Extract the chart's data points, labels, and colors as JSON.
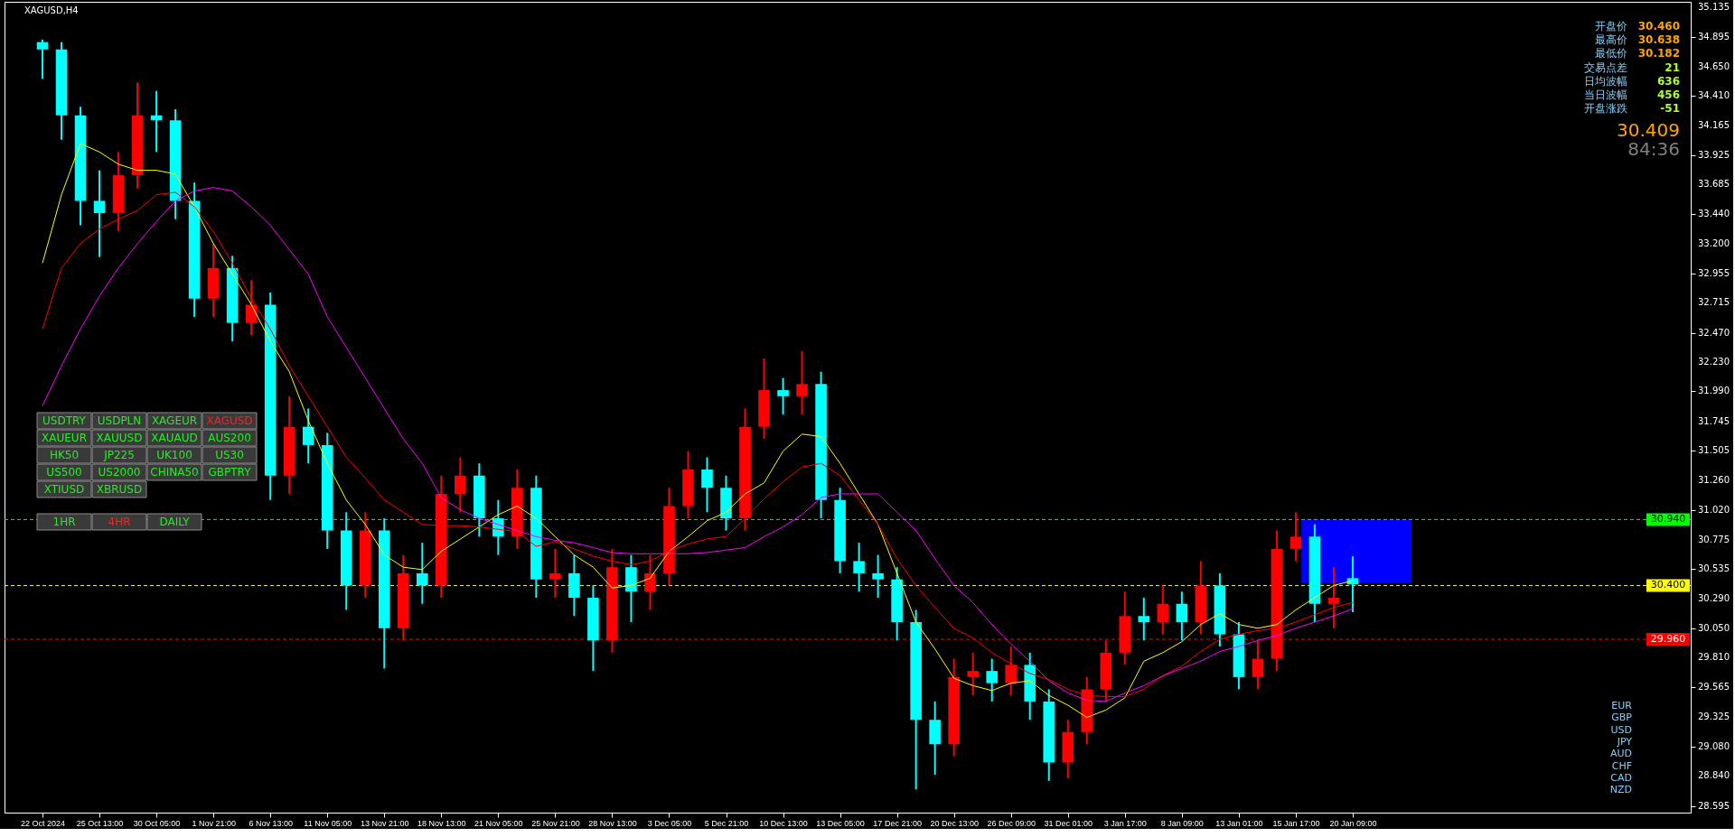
{
  "chart_data": {
    "type": "candlestick",
    "title": "XAGUSD,H4",
    "categories": [
      "22 Oct 2024",
      null,
      null,
      "25 Oct 13:00",
      null,
      null,
      "30 Oct 05:00",
      null,
      null,
      "1 Nov 21:00",
      null,
      null,
      "6 Nov 13:00",
      null,
      null,
      "11 Nov 05:00",
      null,
      null,
      "13 Nov 21:00",
      null,
      null,
      "18 Nov 13:00",
      null,
      null,
      "21 Nov 05:00",
      null,
      null,
      "25 Nov 21:00",
      null,
      null,
      "28 Nov 13:00",
      null,
      null,
      "3 Dec 05:00",
      null,
      null,
      "5 Dec 21:00",
      null,
      null,
      "10 Dec 13:00",
      null,
      null,
      "13 Dec 05:00",
      null,
      null,
      "17 Dec 21:00",
      null,
      null,
      "20 Dec 13:00",
      null,
      null,
      "26 Dec 09:00",
      null,
      null,
      "31 Dec 01:00",
      null,
      null,
      "3 Jan 17:00",
      null,
      null,
      "8 Jan 09:00",
      null,
      null,
      "13 Jan 01:00",
      null,
      null,
      "15 Jan 17:00",
      null,
      null,
      "20 Jan 09:00"
    ],
    "ohlc": [
      [
        34.85,
        34.87,
        34.55,
        34.79
      ],
      [
        34.79,
        34.85,
        34.05,
        34.25
      ],
      [
        34.25,
        34.32,
        33.35,
        33.55
      ],
      [
        33.55,
        33.8,
        33.09,
        33.45
      ],
      [
        33.45,
        33.95,
        33.3,
        33.76
      ],
      [
        33.76,
        34.52,
        33.65,
        34.25
      ],
      [
        34.25,
        34.45,
        33.95,
        34.21
      ],
      [
        34.21,
        34.3,
        33.4,
        33.55
      ],
      [
        33.55,
        33.7,
        32.6,
        32.75
      ],
      [
        32.75,
        33.2,
        32.6,
        33.0
      ],
      [
        33.0,
        33.1,
        32.4,
        32.55
      ],
      [
        32.55,
        32.9,
        32.45,
        32.7
      ],
      [
        32.7,
        32.8,
        31.1,
        31.3
      ],
      [
        31.3,
        31.95,
        31.15,
        31.7
      ],
      [
        31.7,
        31.85,
        31.4,
        31.55
      ],
      [
        31.55,
        31.65,
        30.7,
        30.85
      ],
      [
        30.85,
        31.0,
        30.2,
        30.4
      ],
      [
        30.4,
        31.0,
        30.3,
        30.85
      ],
      [
        30.85,
        30.95,
        29.72,
        30.05
      ],
      [
        30.05,
        30.65,
        29.95,
        30.5
      ],
      [
        30.5,
        30.75,
        30.25,
        30.4
      ],
      [
        30.4,
        31.3,
        30.3,
        31.15
      ],
      [
        31.15,
        31.45,
        31.0,
        31.3
      ],
      [
        31.3,
        31.4,
        30.8,
        30.95
      ],
      [
        30.95,
        31.1,
        30.65,
        30.8
      ],
      [
        30.8,
        31.35,
        30.7,
        31.2
      ],
      [
        31.2,
        31.3,
        30.3,
        30.45
      ],
      [
        30.45,
        30.7,
        30.3,
        30.5
      ],
      [
        30.5,
        30.65,
        30.15,
        30.3
      ],
      [
        30.3,
        30.4,
        29.7,
        29.95
      ],
      [
        29.95,
        30.7,
        29.85,
        30.55
      ],
      [
        30.55,
        30.65,
        30.1,
        30.35
      ],
      [
        30.35,
        30.65,
        30.2,
        30.5
      ],
      [
        30.5,
        31.2,
        30.4,
        31.05
      ],
      [
        31.05,
        31.5,
        30.95,
        31.35
      ],
      [
        31.35,
        31.45,
        31.0,
        31.2
      ],
      [
        31.2,
        31.3,
        30.85,
        30.95
      ],
      [
        30.95,
        31.85,
        30.85,
        31.7
      ],
      [
        31.7,
        32.26,
        31.6,
        32.0
      ],
      [
        32.0,
        32.1,
        31.8,
        31.95
      ],
      [
        31.95,
        32.32,
        31.8,
        32.05
      ],
      [
        32.05,
        32.15,
        30.95,
        31.1
      ],
      [
        31.1,
        31.2,
        30.5,
        30.6
      ],
      [
        30.6,
        30.75,
        30.35,
        30.5
      ],
      [
        30.5,
        30.65,
        30.3,
        30.45
      ],
      [
        30.45,
        30.55,
        29.95,
        30.1
      ],
      [
        30.1,
        30.2,
        28.73,
        29.3
      ],
      [
        29.3,
        29.45,
        28.85,
        29.1
      ],
      [
        29.1,
        29.8,
        29.0,
        29.65
      ],
      [
        29.65,
        29.85,
        29.5,
        29.7
      ],
      [
        29.7,
        29.8,
        29.45,
        29.6
      ],
      [
        29.6,
        29.9,
        29.5,
        29.75
      ],
      [
        29.75,
        29.85,
        29.3,
        29.45
      ],
      [
        29.45,
        29.55,
        28.8,
        28.95
      ],
      [
        28.95,
        29.3,
        28.82,
        29.2
      ],
      [
        29.2,
        29.65,
        29.1,
        29.55
      ],
      [
        29.55,
        29.95,
        29.45,
        29.85
      ],
      [
        29.85,
        30.35,
        29.75,
        30.15
      ],
      [
        30.15,
        30.3,
        29.95,
        30.1
      ],
      [
        30.1,
        30.4,
        30.0,
        30.25
      ],
      [
        30.25,
        30.35,
        29.95,
        30.1
      ],
      [
        30.1,
        30.6,
        30.0,
        30.4
      ],
      [
        30.4,
        30.5,
        29.9,
        30.0
      ],
      [
        30.0,
        30.1,
        29.55,
        29.65
      ],
      [
        29.65,
        29.95,
        29.55,
        29.8
      ],
      [
        29.8,
        30.85,
        29.7,
        30.7
      ],
      [
        30.7,
        31.0,
        30.6,
        30.8
      ],
      [
        30.8,
        30.9,
        30.1,
        30.25
      ],
      [
        30.25,
        30.55,
        30.05,
        30.3
      ],
      [
        30.46,
        30.638,
        30.182,
        30.409
      ]
    ],
    "colors": [
      "#00ffff",
      "#00ffff",
      "#00ffff",
      "#00ffff",
      "#ff0000",
      "#ff0000",
      "#00ffff",
      "#00ffff",
      "#00ffff",
      "#ff0000",
      "#00ffff",
      "#ff0000",
      "#00ffff",
      "#ff0000",
      "#00ffff",
      "#00ffff",
      "#00ffff",
      "#ff0000",
      "#00ffff",
      "#ff0000",
      "#00ffff",
      "#ff0000",
      "#ff0000",
      "#00ffff",
      "#00ffff",
      "#ff0000",
      "#00ffff",
      "#ff0000",
      "#00ffff",
      "#00ffff",
      "#ff0000",
      "#00ffff",
      "#ff0000",
      "#ff0000",
      "#ff0000",
      "#00ffff",
      "#00ffff",
      "#ff0000",
      "#ff0000",
      "#00ffff",
      "#ff0000",
      "#00ffff",
      "#00ffff",
      "#00ffff",
      "#00ffff",
      "#00ffff",
      "#00ffff",
      "#00ffff",
      "#ff0000",
      "#ff0000",
      "#00ffff",
      "#ff0000",
      "#00ffff",
      "#00ffff",
      "#ff0000",
      "#ff0000",
      "#ff0000",
      "#ff0000",
      "#00ffff",
      "#ff0000",
      "#00ffff",
      "#ff0000",
      "#00ffff",
      "#00ffff",
      "#ff0000",
      "#ff0000",
      "#ff0000",
      "#00ffff",
      "#ff0000",
      "#00ffff"
    ],
    "series": [
      {
        "type": "line",
        "color": "#ffff00",
        "values": [
          33.04,
          33.6,
          34.02,
          33.95,
          33.85,
          33.8,
          33.8,
          33.77,
          33.5,
          33.2,
          32.95,
          32.7,
          32.4,
          32.15,
          31.75,
          31.4,
          31.1,
          30.9,
          30.65,
          30.55,
          30.53,
          30.68,
          30.78,
          30.88,
          30.98,
          31.05,
          30.95,
          30.8,
          30.65,
          30.55,
          30.38,
          30.4,
          30.46,
          30.68,
          30.8,
          30.93,
          31.0,
          31.15,
          31.24,
          31.5,
          31.64,
          31.62,
          31.4,
          31.15,
          30.9,
          30.5,
          30.1,
          29.88,
          29.64,
          29.58,
          29.54,
          29.6,
          29.62,
          29.5,
          29.42,
          29.32,
          29.38,
          29.48,
          29.78,
          29.85,
          29.94,
          30.08,
          30.17,
          30.08,
          30.05,
          30.08,
          30.2,
          30.3,
          30.4,
          30.44
        ]
      },
      {
        "type": "line",
        "color": "#ff0000",
        "values": [
          32.5,
          33.0,
          33.2,
          33.32,
          33.4,
          33.47,
          33.6,
          33.62,
          33.5,
          33.3,
          33.04,
          32.75,
          32.5,
          32.2,
          31.95,
          31.7,
          31.45,
          31.28,
          31.1,
          31.0,
          30.9,
          30.89,
          30.89,
          30.88,
          30.86,
          30.84,
          30.72,
          30.76,
          30.7,
          30.64,
          30.6,
          30.57,
          30.6,
          30.68,
          30.74,
          30.78,
          30.8,
          30.95,
          31.11,
          31.25,
          31.37,
          31.4,
          31.3,
          31.1,
          30.9,
          30.62,
          30.4,
          30.22,
          30.05,
          29.97,
          29.85,
          29.76,
          29.68,
          29.63,
          29.55,
          29.5,
          29.49,
          29.49,
          29.55,
          29.66,
          29.74,
          29.86,
          29.96,
          30.0,
          30.03,
          30.05,
          30.1,
          30.16,
          30.22,
          30.26
        ]
      },
      {
        "type": "line",
        "color": "#ff00ff",
        "values": [
          31.87,
          32.2,
          32.5,
          32.77,
          33.0,
          33.2,
          33.38,
          33.55,
          33.63,
          33.66,
          33.63,
          33.5,
          33.35,
          33.15,
          32.95,
          32.6,
          32.35,
          32.1,
          31.85,
          31.6,
          31.4,
          31.12,
          31.02,
          30.95,
          30.9,
          30.85,
          30.8,
          30.77,
          30.75,
          30.71,
          30.67,
          30.66,
          30.66,
          30.66,
          30.66,
          30.67,
          30.69,
          30.71,
          30.8,
          30.88,
          30.98,
          31.12,
          31.15,
          31.15,
          31.15,
          31.0,
          30.85,
          30.62,
          30.4,
          30.26,
          30.08,
          29.92,
          29.78,
          29.62,
          29.52,
          29.46,
          29.45,
          29.52,
          29.58,
          29.66,
          29.72,
          29.78,
          29.86,
          29.9,
          29.95,
          29.99,
          30.05,
          30.1,
          30.15,
          30.21
        ]
      }
    ],
    "ylim": [
      28.54,
      35.18
    ],
    "yticks": [
      28.595,
      {
        "value": 28.84,
        "label": "28.840"
      },
      {
        "value": 29.08,
        "label": "29.080"
      },
      29.325,
      29.565,
      {
        "value": 29.81,
        "label": "29.810"
      },
      {
        "value": 30.05,
        "label": "30.050"
      },
      {
        "value": 30.29,
        "label": "30.290"
      },
      30.535,
      30.775,
      {
        "value": 31.02,
        "label": "31.020"
      },
      {
        "value": 31.26,
        "label": "31.260"
      },
      31.505,
      31.745,
      {
        "value": 31.99,
        "label": "31.990"
      },
      {
        "value": 32.23,
        "label": "32.230"
      },
      {
        "value": 32.47,
        "label": "32.470"
      },
      32.715,
      32.955,
      {
        "value": 33.2,
        "label": "33.200"
      },
      {
        "value": 33.44,
        "label": "33.440"
      },
      33.685,
      33.925,
      34.165,
      {
        "value": 34.41,
        "label": "34.410"
      },
      {
        "value": 34.65,
        "label": "34.650"
      },
      34.895,
      35.135
    ],
    "ref_lines": [
      {
        "axis": "y",
        "value": 30.94,
        "label": "30.940",
        "color": "#00ff00",
        "line_style": "dashed"
      },
      {
        "axis": "y",
        "value": 30.4,
        "label": "30.400",
        "color": "#ffff00",
        "line_style": "dashed"
      },
      {
        "axis": "y",
        "value": 29.96,
        "label": "29.960",
        "color": "#ff0000",
        "line_style": "dashed"
      }
    ],
    "bands": [
      {
        "axis": "y",
        "from": 30.42,
        "to": 30.94,
        "color": "#0000ff"
      }
    ],
    "annotations": [
      "开盘价",
      "30.460",
      "最高价",
      "30.638",
      "最低价",
      "30.182",
      "交易点差",
      "21",
      "日均波幅",
      "636",
      "当日波幅",
      "456",
      "开盘涨跌",
      "-51",
      "30.409",
      "84:36",
      "USDTRY",
      "USDPLN",
      "XAGEUR",
      "XAGUSD",
      "XAUEUR",
      "XAUUSD",
      "XAUAUD",
      "AUS200",
      "HK50",
      "JP225",
      "UK100",
      "US30",
      "US500",
      "US2000",
      "CHINA50",
      "GBPTRY",
      "XTIUSD",
      "XBRUSD",
      "1HR",
      "4HR",
      "DAILY",
      "EUR",
      "GBP",
      "USD",
      "JPY",
      "AUD",
      "CHF",
      "CAD",
      "NZD"
    ],
    "grid": false
  }
}
